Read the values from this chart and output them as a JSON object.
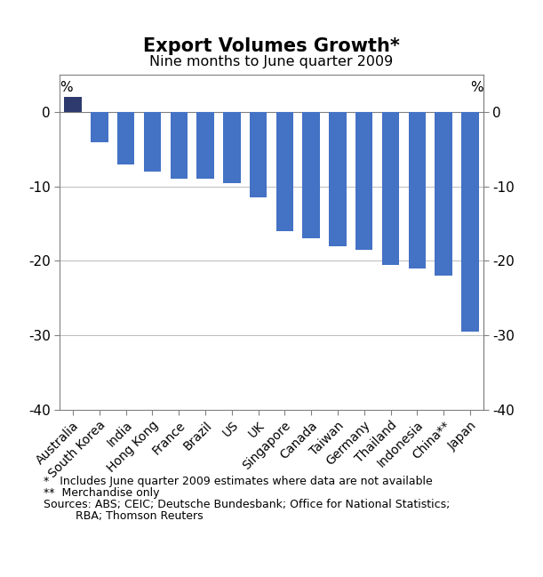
{
  "title": "Export Volumes Growth*",
  "subtitle": "Nine months to June quarter 2009",
  "categories": [
    "Australia",
    "South Korea",
    "India",
    "Hong Kong",
    "France",
    "Brazil",
    "US",
    "UK",
    "Singapore",
    "Canada",
    "Taiwan",
    "Germany",
    "Thailand",
    "Indonesia",
    "China**",
    "Japan"
  ],
  "values": [
    2.0,
    -4.0,
    -7.0,
    -8.0,
    -9.0,
    -9.0,
    -9.5,
    -11.5,
    -16.0,
    -17.0,
    -18.0,
    -18.5,
    -20.5,
    -21.0,
    -22.0,
    -29.5
  ],
  "bar_color_main": "#4472C4",
  "bar_color_australia": "#2E3A6E",
  "ylim": [
    -40,
    5
  ],
  "yticks": [
    0,
    -10,
    -20,
    -30,
    -40
  ],
  "ytick_labels": [
    "0",
    "-10",
    "-20",
    "-30",
    "-40"
  ],
  "footnote1": "*   Includes June quarter 2009 estimates where data are not available",
  "footnote2": "**  Merchandise only",
  "footnote3": "Sources: ABS; CEIC; Deutsche Bundesbank; Office for National Statistics;",
  "footnote4": "         RBA; Thomson Reuters",
  "grid_color": "#bbbbbb",
  "figsize": [
    6.11,
    6.49
  ],
  "dpi": 100
}
